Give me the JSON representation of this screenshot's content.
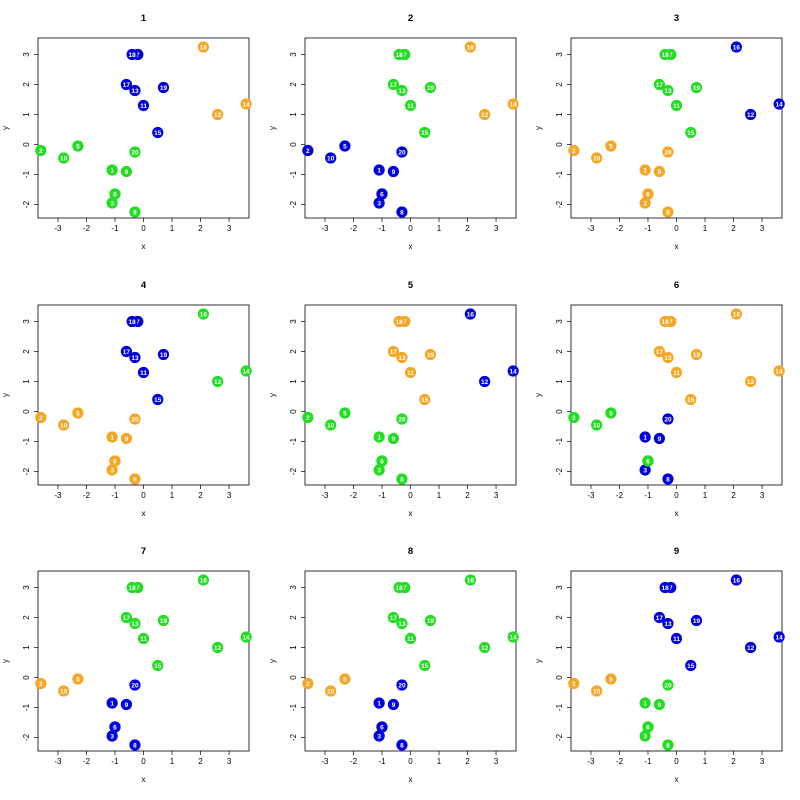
{
  "colors": {
    "orange": "#F5A623",
    "blue": "#0000DD",
    "green": "#22DD22"
  },
  "point_labels": [
    "1",
    "2",
    "3",
    "4",
    "5",
    "6",
    "7",
    "8",
    "9",
    "10",
    "11",
    "12",
    "13",
    "14",
    "15",
    "16",
    "17",
    "18",
    "19",
    "20"
  ],
  "chart_data": [
    {
      "type": "scatter",
      "title": "1",
      "xlabel": "x",
      "ylabel": "y",
      "xlim": [
        -3.7,
        3.7
      ],
      "ylim": [
        -2.45,
        3.55
      ],
      "xticks": [
        -3,
        -2,
        -1,
        0,
        1,
        2,
        3
      ],
      "yticks": [
        -2,
        -1,
        0,
        1,
        2,
        3
      ],
      "x": [
        -1.1,
        -3.6,
        -1.1,
        -1.0,
        -2.3,
        -1.0,
        -0.2,
        -0.3,
        -0.6,
        -2.8,
        0.0,
        2.6,
        -0.3,
        3.6,
        0.5,
        2.1,
        -0.6,
        -0.4,
        0.7,
        -0.3
      ],
      "y": [
        -0.85,
        -0.2,
        -1.95,
        -1.65,
        -0.05,
        -1.65,
        3.0,
        -2.25,
        -0.9,
        -0.45,
        1.3,
        1.0,
        1.8,
        1.35,
        0.4,
        3.25,
        2.0,
        3.0,
        1.9,
        -0.25
      ],
      "groups": [
        "green",
        "green",
        "green",
        "green",
        "green",
        "green",
        "blue",
        "green",
        "green",
        "green",
        "blue",
        "orange",
        "blue",
        "orange",
        "blue",
        "orange",
        "blue",
        "blue",
        "blue",
        "green"
      ]
    },
    {
      "type": "scatter",
      "title": "2",
      "xlabel": "x",
      "ylabel": "y",
      "xlim": [
        -3.7,
        3.7
      ],
      "ylim": [
        -2.45,
        3.55
      ],
      "xticks": [
        -3,
        -2,
        -1,
        0,
        1,
        2,
        3
      ],
      "yticks": [
        -2,
        -1,
        0,
        1,
        2,
        3
      ],
      "x": [
        -1.1,
        -3.6,
        -1.1,
        -1.0,
        -2.3,
        -1.0,
        -0.2,
        -0.3,
        -0.6,
        -2.8,
        0.0,
        2.6,
        -0.3,
        3.6,
        0.5,
        2.1,
        -0.6,
        -0.4,
        0.7,
        -0.3
      ],
      "y": [
        -0.85,
        -0.2,
        -1.95,
        -1.65,
        -0.05,
        -1.65,
        3.0,
        -2.25,
        -0.9,
        -0.45,
        1.3,
        1.0,
        1.8,
        1.35,
        0.4,
        3.25,
        2.0,
        3.0,
        1.9,
        -0.25
      ],
      "groups": [
        "blue",
        "blue",
        "blue",
        "blue",
        "blue",
        "blue",
        "green",
        "blue",
        "blue",
        "blue",
        "green",
        "orange",
        "green",
        "orange",
        "green",
        "orange",
        "green",
        "green",
        "green",
        "blue"
      ]
    },
    {
      "type": "scatter",
      "title": "3",
      "xlabel": "x",
      "ylabel": "y",
      "xlim": [
        -3.7,
        3.7
      ],
      "ylim": [
        -2.45,
        3.55
      ],
      "xticks": [
        -3,
        -2,
        -1,
        0,
        1,
        2,
        3
      ],
      "yticks": [
        -2,
        -1,
        0,
        1,
        2,
        3
      ],
      "x": [
        -1.1,
        -3.6,
        -1.1,
        -1.0,
        -2.3,
        -1.0,
        -0.2,
        -0.3,
        -0.6,
        -2.8,
        0.0,
        2.6,
        -0.3,
        3.6,
        0.5,
        2.1,
        -0.6,
        -0.4,
        0.7,
        -0.3
      ],
      "y": [
        -0.85,
        -0.2,
        -1.95,
        -1.65,
        -0.05,
        -1.65,
        3.0,
        -2.25,
        -0.9,
        -0.45,
        1.3,
        1.0,
        1.8,
        1.35,
        0.4,
        3.25,
        2.0,
        3.0,
        1.9,
        -0.25
      ],
      "groups": [
        "orange",
        "orange",
        "orange",
        "orange",
        "orange",
        "orange",
        "green",
        "orange",
        "orange",
        "orange",
        "green",
        "blue",
        "green",
        "blue",
        "green",
        "blue",
        "green",
        "green",
        "green",
        "orange"
      ]
    },
    {
      "type": "scatter",
      "title": "4",
      "xlabel": "x",
      "ylabel": "y",
      "xlim": [
        -3.7,
        3.7
      ],
      "ylim": [
        -2.45,
        3.55
      ],
      "xticks": [
        -3,
        -2,
        -1,
        0,
        1,
        2,
        3
      ],
      "yticks": [
        -2,
        -1,
        0,
        1,
        2,
        3
      ],
      "x": [
        -1.1,
        -3.6,
        -1.1,
        -1.0,
        -2.3,
        -1.0,
        -0.2,
        -0.3,
        -0.6,
        -2.8,
        0.0,
        2.6,
        -0.3,
        3.6,
        0.5,
        2.1,
        -0.6,
        -0.4,
        0.7,
        -0.3
      ],
      "y": [
        -0.85,
        -0.2,
        -1.95,
        -1.65,
        -0.05,
        -1.65,
        3.0,
        -2.25,
        -0.9,
        -0.45,
        1.3,
        1.0,
        1.8,
        1.35,
        0.4,
        3.25,
        2.0,
        3.0,
        1.9,
        -0.25
      ],
      "groups": [
        "orange",
        "orange",
        "orange",
        "orange",
        "orange",
        "orange",
        "blue",
        "orange",
        "orange",
        "orange",
        "blue",
        "green",
        "blue",
        "green",
        "blue",
        "green",
        "blue",
        "blue",
        "blue",
        "orange"
      ]
    },
    {
      "type": "scatter",
      "title": "5",
      "xlabel": "x",
      "ylabel": "y",
      "xlim": [
        -3.7,
        3.7
      ],
      "ylim": [
        -2.45,
        3.55
      ],
      "xticks": [
        -3,
        -2,
        -1,
        0,
        1,
        2,
        3
      ],
      "yticks": [
        -2,
        -1,
        0,
        1,
        2,
        3
      ],
      "x": [
        -1.1,
        -3.6,
        -1.1,
        -1.0,
        -2.3,
        -1.0,
        -0.2,
        -0.3,
        -0.6,
        -2.8,
        0.0,
        2.6,
        -0.3,
        3.6,
        0.5,
        2.1,
        -0.6,
        -0.4,
        0.7,
        -0.3
      ],
      "y": [
        -0.85,
        -0.2,
        -1.95,
        -1.65,
        -0.05,
        -1.65,
        3.0,
        -2.25,
        -0.9,
        -0.45,
        1.3,
        1.0,
        1.8,
        1.35,
        0.4,
        3.25,
        2.0,
        3.0,
        1.9,
        -0.25
      ],
      "groups": [
        "green",
        "green",
        "green",
        "green",
        "green",
        "green",
        "orange",
        "green",
        "green",
        "green",
        "orange",
        "blue",
        "orange",
        "blue",
        "orange",
        "blue",
        "orange",
        "orange",
        "orange",
        "green"
      ]
    },
    {
      "type": "scatter",
      "title": "6",
      "xlabel": "x",
      "ylabel": "y",
      "xlim": [
        -3.7,
        3.7
      ],
      "ylim": [
        -2.45,
        3.55
      ],
      "xticks": [
        -3,
        -2,
        -1,
        0,
        1,
        2,
        3
      ],
      "yticks": [
        -2,
        -1,
        0,
        1,
        2,
        3
      ],
      "x": [
        -1.1,
        -3.6,
        -1.1,
        -1.0,
        -2.3,
        -1.0,
        -0.2,
        -0.3,
        -0.6,
        -2.8,
        0.0,
        2.6,
        -0.3,
        3.6,
        0.5,
        2.1,
        -0.6,
        -0.4,
        0.7,
        -0.3
      ],
      "y": [
        -0.85,
        -0.2,
        -1.95,
        -1.65,
        -0.05,
        -1.65,
        3.0,
        -2.25,
        -0.9,
        -0.45,
        1.3,
        1.0,
        1.8,
        1.35,
        0.4,
        3.25,
        2.0,
        3.0,
        1.9,
        -0.25
      ],
      "groups": [
        "blue",
        "green",
        "blue",
        "blue",
        "green",
        "green",
        "orange",
        "blue",
        "blue",
        "green",
        "orange",
        "orange",
        "orange",
        "orange",
        "orange",
        "orange",
        "orange",
        "orange",
        "orange",
        "blue"
      ]
    },
    {
      "type": "scatter",
      "title": "7",
      "xlabel": "x",
      "ylabel": "y",
      "xlim": [
        -3.7,
        3.7
      ],
      "ylim": [
        -2.45,
        3.55
      ],
      "xticks": [
        -3,
        -2,
        -1,
        0,
        1,
        2,
        3
      ],
      "yticks": [
        -2,
        -1,
        0,
        1,
        2,
        3
      ],
      "x": [
        -1.1,
        -3.6,
        -1.1,
        -1.0,
        -2.3,
        -1.0,
        -0.2,
        -0.3,
        -0.6,
        -2.8,
        0.0,
        2.6,
        -0.3,
        3.6,
        0.5,
        2.1,
        -0.6,
        -0.4,
        0.7,
        -0.3
      ],
      "y": [
        -0.85,
        -0.2,
        -1.95,
        -1.65,
        -0.05,
        -1.65,
        3.0,
        -2.25,
        -0.9,
        -0.45,
        1.3,
        1.0,
        1.8,
        1.35,
        0.4,
        3.25,
        2.0,
        3.0,
        1.9,
        -0.25
      ],
      "groups": [
        "blue",
        "orange",
        "blue",
        "blue",
        "orange",
        "blue",
        "green",
        "blue",
        "blue",
        "orange",
        "green",
        "green",
        "green",
        "green",
        "green",
        "green",
        "green",
        "green",
        "green",
        "blue"
      ]
    },
    {
      "type": "scatter",
      "title": "8",
      "xlabel": "x",
      "ylabel": "y",
      "xlim": [
        -3.7,
        3.7
      ],
      "ylim": [
        -2.45,
        3.55
      ],
      "xticks": [
        -3,
        -2,
        -1,
        0,
        1,
        2,
        3
      ],
      "yticks": [
        -2,
        -1,
        0,
        1,
        2,
        3
      ],
      "x": [
        -1.1,
        -3.6,
        -1.1,
        -1.0,
        -2.3,
        -1.0,
        -0.2,
        -0.3,
        -0.6,
        -2.8,
        0.0,
        2.6,
        -0.3,
        3.6,
        0.5,
        2.1,
        -0.6,
        -0.4,
        0.7,
        -0.3
      ],
      "y": [
        -0.85,
        -0.2,
        -1.95,
        -1.65,
        -0.05,
        -1.65,
        3.0,
        -2.25,
        -0.9,
        -0.45,
        1.3,
        1.0,
        1.8,
        1.35,
        0.4,
        3.25,
        2.0,
        3.0,
        1.9,
        -0.25
      ],
      "groups": [
        "blue",
        "orange",
        "blue",
        "blue",
        "orange",
        "blue",
        "green",
        "blue",
        "blue",
        "orange",
        "green",
        "green",
        "green",
        "green",
        "green",
        "green",
        "green",
        "green",
        "green",
        "blue"
      ]
    },
    {
      "type": "scatter",
      "title": "9",
      "xlabel": "x",
      "ylabel": "y",
      "xlim": [
        -3.7,
        3.7
      ],
      "ylim": [
        -2.45,
        3.55
      ],
      "xticks": [
        -3,
        -2,
        -1,
        0,
        1,
        2,
        3
      ],
      "yticks": [
        -2,
        -1,
        0,
        1,
        2,
        3
      ],
      "x": [
        -1.1,
        -3.6,
        -1.1,
        -1.0,
        -2.3,
        -1.0,
        -0.2,
        -0.3,
        -0.6,
        -2.8,
        0.0,
        2.6,
        -0.3,
        3.6,
        0.5,
        2.1,
        -0.6,
        -0.4,
        0.7,
        -0.3
      ],
      "y": [
        -0.85,
        -0.2,
        -1.95,
        -1.65,
        -0.05,
        -1.65,
        3.0,
        -2.25,
        -0.9,
        -0.45,
        1.3,
        1.0,
        1.8,
        1.35,
        0.4,
        3.25,
        2.0,
        3.0,
        1.9,
        -0.25
      ],
      "groups": [
        "green",
        "orange",
        "green",
        "green",
        "orange",
        "green",
        "blue",
        "green",
        "green",
        "orange",
        "blue",
        "blue",
        "blue",
        "blue",
        "blue",
        "blue",
        "blue",
        "blue",
        "blue",
        "green"
      ]
    }
  ]
}
